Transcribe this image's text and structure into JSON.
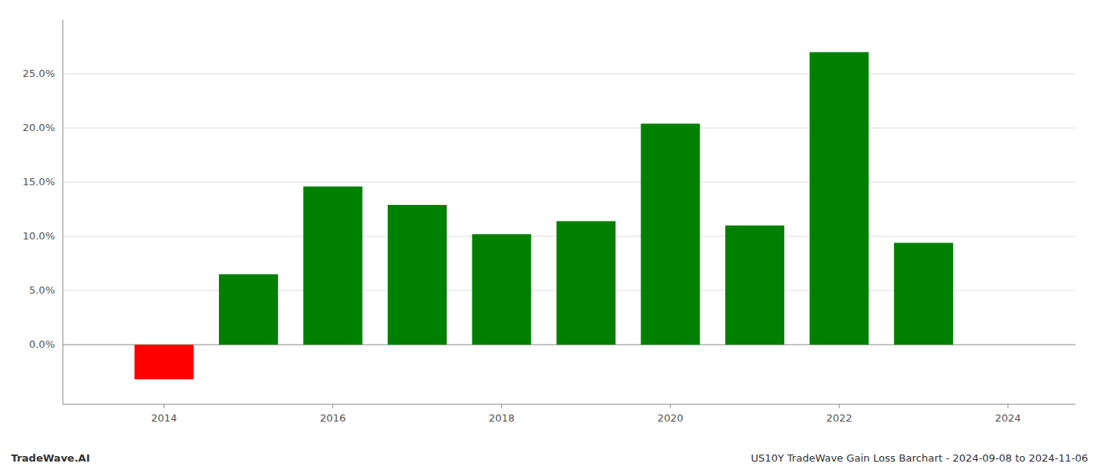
{
  "chart_data": {
    "type": "bar",
    "title": "US10Y TradeWave Gain Loss Barchart - 2024-09-08 to 2024-11-06",
    "annotations": [
      "TradeWave.AI"
    ],
    "x": [
      2014,
      2015,
      2016,
      2017,
      2018,
      2019,
      2020,
      2021,
      2022,
      2023
    ],
    "values": [
      -0.032,
      0.065,
      0.146,
      0.129,
      0.102,
      0.114,
      0.204,
      0.11,
      0.27,
      0.094
    ],
    "colors": [
      "#ff0000",
      "#008000",
      "#008000",
      "#008000",
      "#008000",
      "#008000",
      "#008000",
      "#008000",
      "#008000",
      "#008000"
    ],
    "xlim": [
      2012.8,
      2024.8
    ],
    "xticks": [
      2014,
      2016,
      2018,
      2020,
      2022,
      2024
    ],
    "ylim": [
      -0.055,
      0.3
    ],
    "yticks": [
      {
        "value": 0.0,
        "label": "0.0%"
      },
      {
        "value": 0.05,
        "label": "5.0%"
      },
      {
        "value": 0.1,
        "label": "10.0%"
      },
      {
        "value": 0.15,
        "label": "15.0%"
      },
      {
        "value": 0.2,
        "label": "20.0%"
      },
      {
        "value": 0.25,
        "label": "25.0%"
      }
    ],
    "grid": true
  }
}
